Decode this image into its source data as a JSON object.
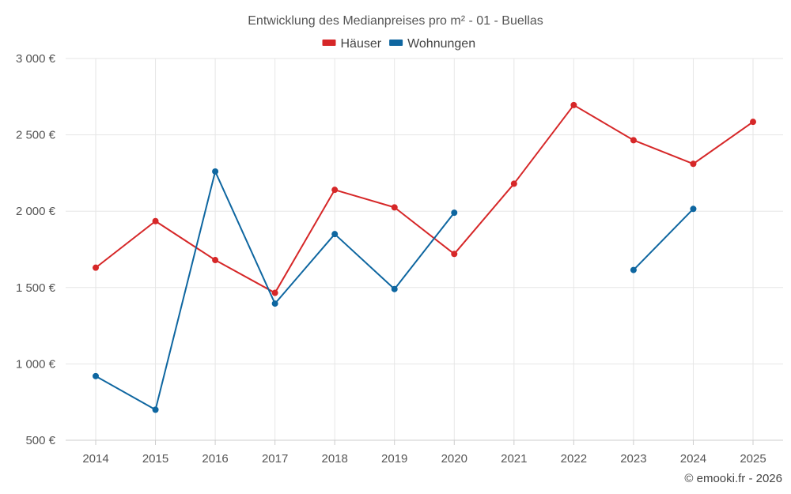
{
  "chart_data": {
    "type": "line",
    "title": "Entwicklung des Medianpreises pro m² - 01 - Buellas",
    "categories": [
      "2014",
      "2015",
      "2016",
      "2017",
      "2018",
      "2019",
      "2020",
      "2021",
      "2022",
      "2023",
      "2024",
      "2025"
    ],
    "series": [
      {
        "name": "Häuser",
        "color": "#d62728",
        "values": [
          1630,
          1935,
          1680,
          1465,
          2140,
          2025,
          1720,
          2180,
          2695,
          2465,
          2310,
          2585
        ]
      },
      {
        "name": "Wohnungen",
        "color": "#0e66a0",
        "values": [
          920,
          700,
          2260,
          1395,
          1850,
          1490,
          1990,
          null,
          null,
          1615,
          2015,
          null
        ]
      }
    ],
    "ylim": [
      500,
      3000
    ],
    "yticks": [
      500,
      1000,
      1500,
      2000,
      2500,
      3000
    ],
    "ytick_labels": [
      "500 €",
      "1 000 €",
      "1 500 €",
      "2 000 €",
      "2 500 €",
      "3 000 €"
    ],
    "grid": true,
    "legend_position": "top-center",
    "credit": "© emooki.fr - 2026"
  }
}
